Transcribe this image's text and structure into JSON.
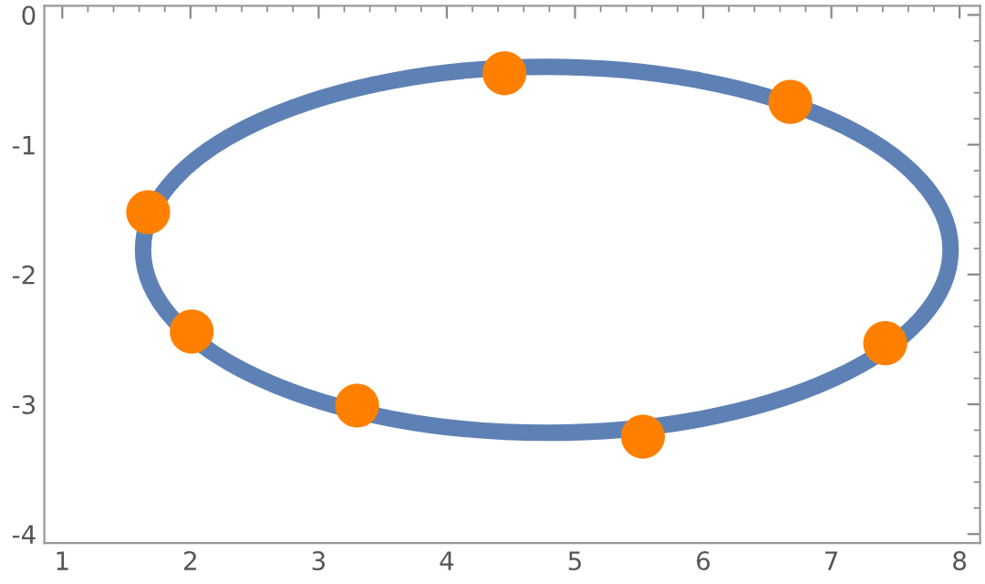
{
  "chart_data": {
    "type": "scatter",
    "marker": "circle",
    "xlim": [
      0.86,
      8.16
    ],
    "ylim": [
      -4.07,
      0.07
    ],
    "xticks": [
      1,
      2,
      3,
      4,
      5,
      6,
      7,
      8
    ],
    "yticks": [
      -4,
      -3,
      -2,
      -1,
      0
    ],
    "grid": false,
    "legend": false,
    "series": [
      {
        "color": "#ff8000",
        "x": [
          4.45,
          6.68,
          1.67,
          2.01,
          3.3,
          5.53,
          7.42
        ],
        "values": [
          -0.45,
          -0.67,
          -1.52,
          -2.44,
          -3.01,
          -3.25,
          -2.53
        ]
      }
    ]
  }
}
